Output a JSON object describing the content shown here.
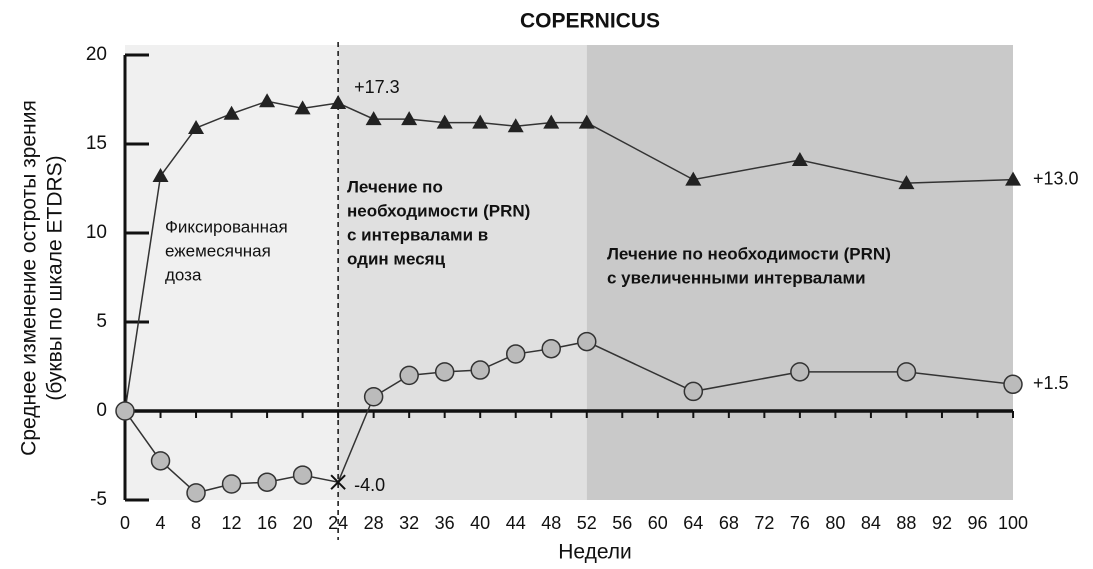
{
  "chart_data": {
    "type": "line",
    "title": "COPERNICUS",
    "xlabel": "Недели",
    "ylabel": [
      "Среднее изменение остроты зрения",
      "(буквы по шкале ETDRS)"
    ],
    "xlim": [
      0,
      100
    ],
    "xticks": [
      0,
      4,
      8,
      12,
      16,
      20,
      24,
      28,
      32,
      36,
      40,
      44,
      48,
      52,
      56,
      60,
      64,
      68,
      72,
      76,
      80,
      84,
      88,
      92,
      96,
      100
    ],
    "ylim": [
      -5,
      20
    ],
    "yticks": [
      -5,
      0,
      5,
      10,
      15,
      20
    ],
    "regions": [
      {
        "start": 0,
        "end": 24,
        "color": "#f0f0f0",
        "label": [
          "Фиксированная",
          "ежемесячная",
          "доза"
        ]
      },
      {
        "start": 24,
        "end": 52,
        "color": "#e0e0e0",
        "label": [
          "Лечение по",
          "необходимости (PRN)",
          "с интервалами в",
          "один месяц"
        ]
      },
      {
        "start": 52,
        "end": 100,
        "color": "#c9c9c9",
        "label": [
          "Лечение по необходимости (PRN)",
          "с увеличенными интервалами"
        ]
      }
    ],
    "divider": 24,
    "series": [
      {
        "marker": "triangle",
        "color": "#222222",
        "x": [
          0,
          4,
          8,
          12,
          16,
          20,
          24,
          28,
          32,
          36,
          40,
          44,
          48,
          52,
          64,
          76,
          88,
          100
        ],
        "values": [
          0,
          13.2,
          15.9,
          16.7,
          17.4,
          17.0,
          17.3,
          16.4,
          16.4,
          16.2,
          16.2,
          16.0,
          16.2,
          16.2,
          13.0,
          14.1,
          12.8,
          13.0
        ],
        "value_labels": [
          null,
          null,
          null,
          null,
          null,
          null,
          "+17.3",
          null,
          null,
          null,
          null,
          null,
          null,
          null,
          null,
          null,
          null,
          "+13.0"
        ]
      },
      {
        "marker": "circle",
        "color": "#bbbbbb",
        "x": [
          0,
          4,
          8,
          12,
          16,
          20,
          24,
          28,
          32,
          36,
          40,
          44,
          48,
          52,
          64,
          76,
          88,
          100
        ],
        "values": [
          0,
          -2.8,
          -4.6,
          -4.1,
          -4.0,
          -3.6,
          -4.0,
          0.8,
          2.0,
          2.2,
          2.3,
          3.2,
          3.5,
          3.9,
          1.1,
          2.2,
          2.2,
          1.5
        ],
        "markers": [
          "circle",
          "circle",
          "circle",
          "circle",
          "circle",
          "circle",
          "cross",
          "circle",
          "circle",
          "circle",
          "circle",
          "circle",
          "circle",
          "circle",
          "circle",
          "circle",
          "circle",
          "circle"
        ],
        "value_labels": [
          null,
          null,
          null,
          null,
          null,
          null,
          "-4.0",
          null,
          null,
          null,
          null,
          null,
          null,
          null,
          null,
          null,
          null,
          "+1.5"
        ]
      }
    ]
  }
}
